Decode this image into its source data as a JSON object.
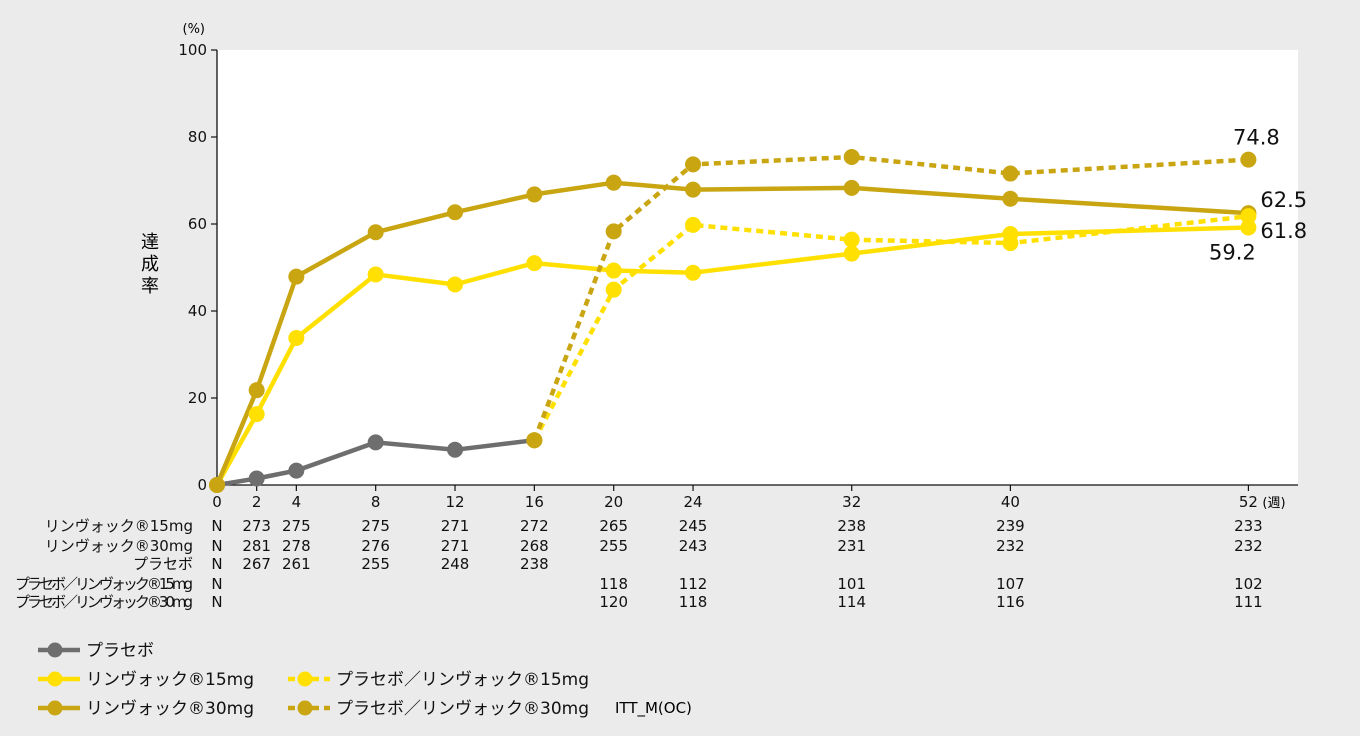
{
  "chart_data": {
    "type": "line",
    "ylabel": "達成率",
    "yunit": "(%)",
    "xunit": "(週)",
    "ylim": [
      0,
      100
    ],
    "yticks": [
      0,
      20,
      40,
      60,
      80,
      100
    ],
    "xticks": [
      0,
      2,
      4,
      8,
      12,
      16,
      20,
      24,
      32,
      40,
      52
    ],
    "xlim": [
      0,
      54.5
    ],
    "grid": false,
    "series": [
      {
        "name": "プラセボ",
        "color": "#6e6e6e",
        "dashed": false,
        "points": [
          [
            0,
            0
          ],
          [
            2,
            1.5
          ],
          [
            4,
            3.3
          ],
          [
            8,
            9.8
          ],
          [
            12,
            8.1
          ],
          [
            16,
            10.3
          ]
        ]
      },
      {
        "name": "リンヴォック®15mg",
        "color": "#ffe000",
        "dashed": false,
        "points": [
          [
            0,
            0
          ],
          [
            2,
            16.3
          ],
          [
            4,
            33.8
          ],
          [
            8,
            48.4
          ],
          [
            12,
            46.1
          ],
          [
            16,
            51.0
          ],
          [
            20,
            49.3
          ],
          [
            24,
            48.8
          ],
          [
            32,
            53.2
          ],
          [
            40,
            57.7
          ],
          [
            52,
            59.2
          ]
        ]
      },
      {
        "name": "リンヴォック®30mg",
        "color": "#c9a512",
        "dashed": false,
        "points": [
          [
            0,
            0
          ],
          [
            2,
            21.8
          ],
          [
            4,
            47.9
          ],
          [
            8,
            58.1
          ],
          [
            12,
            62.7
          ],
          [
            16,
            66.8
          ],
          [
            20,
            69.5
          ],
          [
            24,
            67.9
          ],
          [
            32,
            68.3
          ],
          [
            40,
            65.8
          ],
          [
            52,
            62.5
          ]
        ]
      },
      {
        "name": "プラセボ／リンヴォック®15mg",
        "color": "#ffe000",
        "dashed": true,
        "points": [
          [
            16,
            10.3
          ],
          [
            20,
            44.9
          ],
          [
            24,
            59.8
          ],
          [
            32,
            56.4
          ],
          [
            40,
            55.6
          ],
          [
            52,
            61.8
          ]
        ]
      },
      {
        "name": "プラセボ／リンヴォック®30mg",
        "color": "#c9a512",
        "dashed": true,
        "points": [
          [
            16,
            10.3
          ],
          [
            20,
            58.3
          ],
          [
            24,
            73.7
          ],
          [
            32,
            75.4
          ],
          [
            40,
            71.6
          ],
          [
            52,
            74.8
          ]
        ]
      }
    ],
    "end_labels": [
      {
        "text": "74.8",
        "x": 52,
        "y": 74.8,
        "pos": "above"
      },
      {
        "text": "62.5",
        "x": 52,
        "y": 62.5,
        "pos": "right-up"
      },
      {
        "text": "61.8",
        "x": 52,
        "y": 61.8,
        "pos": "right-down"
      },
      {
        "text": "59.2",
        "x": 52,
        "y": 59.2,
        "pos": "below"
      }
    ],
    "n_table": {
      "n_label": "N",
      "rows": [
        {
          "label": "リンヴォック®15mg",
          "values": {
            "2": "273",
            "4": "275",
            "8": "275",
            "12": "271",
            "16": "272",
            "20": "265",
            "24": "245",
            "32": "238",
            "40": "239",
            "52": "233"
          }
        },
        {
          "label": "リンヴォック®30mg",
          "values": {
            "2": "281",
            "4": "278",
            "8": "276",
            "12": "271",
            "16": "268",
            "20": "255",
            "24": "243",
            "32": "231",
            "40": "232",
            "52": "232"
          }
        },
        {
          "label": "プラセボ",
          "values": {
            "2": "267",
            "4": "261",
            "8": "255",
            "12": "248",
            "16": "238"
          }
        },
        {
          "label": "プラセボ／リンヴォック®15mg",
          "values": {
            "20": "118",
            "24": "112",
            "32": "101",
            "40": "107",
            "52": "102"
          }
        },
        {
          "label": "プラセボ／リンヴォック®30mg",
          "values": {
            "20": "120",
            "24": "118",
            "32": "114",
            "40": "116",
            "52": "111"
          }
        }
      ]
    },
    "legend": [
      {
        "name": "プラセボ",
        "color": "#6e6e6e",
        "dashed": false
      },
      {
        "name": "リンヴォック®15mg",
        "color": "#ffe000",
        "dashed": false
      },
      {
        "name": "リンヴォック®30mg",
        "color": "#c9a512",
        "dashed": false
      },
      {
        "name": "プラセボ／リンヴォック®15mg",
        "color": "#ffe000",
        "dashed": true
      },
      {
        "name": "プラセボ／リンヴォック®30mg",
        "color": "#c9a512",
        "dashed": true
      }
    ],
    "footnote": "ITT_M(OC)"
  }
}
